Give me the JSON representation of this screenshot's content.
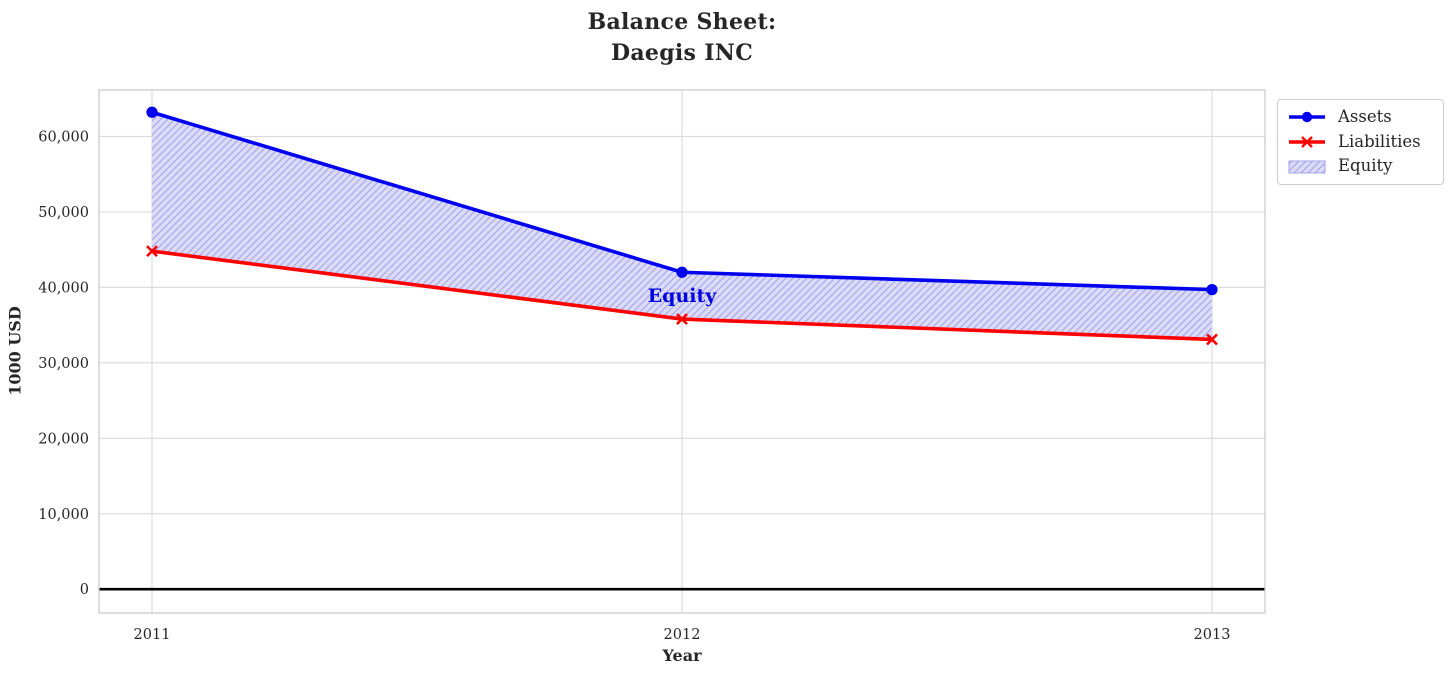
{
  "chart_data": {
    "type": "line",
    "title": "Balance Sheet:\nDaegis INC",
    "xlabel": "Year",
    "ylabel": "1000 USD",
    "x": [
      2011,
      2012,
      2013
    ],
    "x_tick_labels": [
      "2011",
      "2012",
      "2013"
    ],
    "y_ticks": [
      0,
      10000,
      20000,
      30000,
      40000,
      50000,
      60000
    ],
    "y_tick_labels": [
      "0",
      "10,000",
      "20,000",
      "30,000",
      "40,000",
      "50,000",
      "60,000"
    ],
    "xlim": [
      2010.9,
      2013.1
    ],
    "ylim": [
      -3150,
      66150
    ],
    "grid": true,
    "zero_line": true,
    "legend_position": "outside-top-right",
    "series": [
      {
        "name": "Assets",
        "color": "#0000f0",
        "marker": "circle",
        "values": [
          63200,
          42000,
          39700
        ]
      },
      {
        "name": "Liabilities",
        "color": "#ff0000",
        "marker": "x",
        "values": [
          44800,
          35800,
          33100
        ]
      }
    ],
    "fill_between": {
      "name": "Equity",
      "between": [
        "Assets",
        "Liabilities"
      ],
      "values": [
        18400,
        6200,
        6600
      ],
      "face_color": "#dbdbf8",
      "hatch_color": "#a3a3ec",
      "hatch": "///"
    },
    "annotation": {
      "text": "Equity",
      "x": 2012,
      "y": 38900,
      "color": "#0000e0"
    },
    "colors": {
      "grid": "#d9d9d9",
      "spine": "#cbcbcb",
      "tick_text": "#262626",
      "zero_line": "#000000"
    }
  }
}
